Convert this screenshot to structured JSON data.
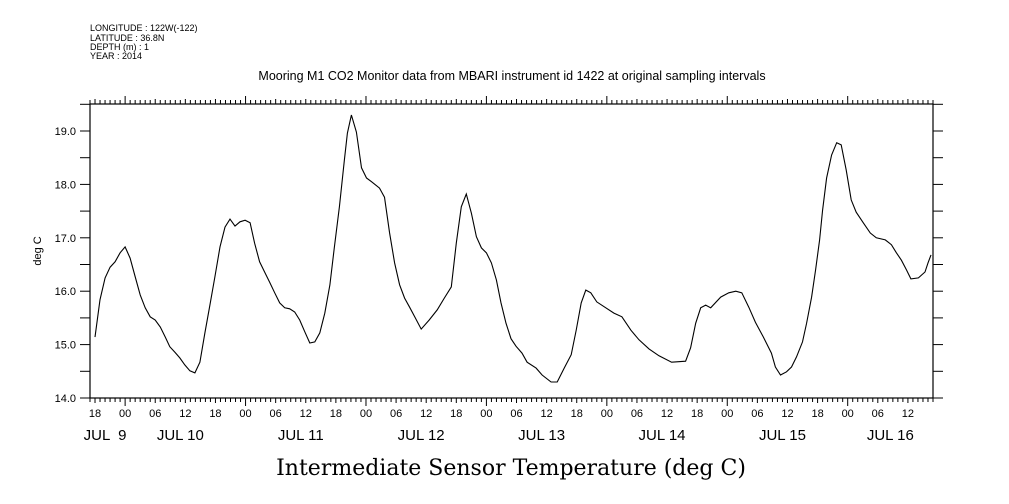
{
  "chart_data": {
    "type": "line",
    "title": "Mooring M1 CO2 Monitor data from MBARI instrument id 1422 at original sampling intervals",
    "header_lines": [
      "LONGITUDE : 122W(-122)",
      "LATITUDE : 36.8N",
      "DEPTH (m) : 1",
      "YEAR : 2014"
    ],
    "xlabel": "Intermediate Sensor Temperature (deg C)",
    "ylabel": "deg C",
    "x_units": "hours since JUL 10 2014 00:00",
    "xlim": [
      -7,
      161
    ],
    "ylim": [
      14.0,
      19.5
    ],
    "grid": false,
    "y_ticks": [
      14.0,
      15.0,
      16.0,
      17.0,
      18.0,
      19.0
    ],
    "y_tick_labels": [
      "14.0",
      "15.0",
      "16.0",
      "17.0",
      "18.0",
      "19.0"
    ],
    "x_ticks": [
      -6,
      0,
      6,
      12,
      18,
      24,
      30,
      36,
      42,
      48,
      54,
      60,
      66,
      72,
      78,
      84,
      90,
      96,
      102,
      108,
      114,
      120,
      126,
      132,
      138,
      144,
      150,
      156
    ],
    "x_tick_labels": [
      "18",
      "00",
      "06",
      "12",
      "18",
      "00",
      "06",
      "12",
      "18",
      "00",
      "06",
      "12",
      "18",
      "00",
      "06",
      "12",
      "18",
      "00",
      "06",
      "12",
      "18",
      "00",
      "06",
      "12",
      "18",
      "00",
      "06",
      "12"
    ],
    "day_labels": [
      {
        "label": "JUL  9",
        "at": -4
      },
      {
        "label": "JUL 10",
        "at": 11
      },
      {
        "label": "JUL 11",
        "at": 35
      },
      {
        "label": "JUL 12",
        "at": 59
      },
      {
        "label": "JUL 13",
        "at": 83
      },
      {
        "label": "JUL 14",
        "at": 107
      },
      {
        "label": "JUL 15",
        "at": 131
      },
      {
        "label": "JUL 16",
        "at": 152.5
      }
    ],
    "series": [
      {
        "name": "Intermediate Sensor Temperature",
        "color": "#000000",
        "x": [
          -6,
          -5,
          -4,
          -3,
          -2,
          -1,
          0,
          1,
          2,
          3,
          4,
          5,
          6,
          7,
          8,
          8.9,
          9.9,
          10.9,
          11.9,
          12.9,
          13.9,
          14.9,
          15.9,
          16.9,
          17.9,
          18.9,
          19.9,
          20.9,
          21.9,
          22.9,
          23.9,
          24.9,
          25.8,
          26.8,
          27.8,
          28.8,
          29.8,
          30.8,
          31.8,
          32.8,
          33.8,
          34.8,
          35.8,
          36.8,
          37.8,
          38.8,
          39.8,
          40.8,
          41.7,
          42.7,
          43.7,
          44.3,
          45.1,
          46.1,
          47.1,
          48.1,
          49.1,
          50.7,
          51.7,
          52.7,
          53.7,
          54.7,
          55.7,
          56.7,
          57.7,
          59.0,
          60.6,
          62.2,
          63.6,
          65.0,
          66.0,
          67.0,
          68.0,
          69.0,
          70.0,
          71.0,
          72.0,
          73.0,
          74.0,
          74.9,
          75.9,
          76.9,
          77.9,
          79.1,
          80.1,
          81.9,
          83.1,
          84.9,
          86.1,
          87.5,
          88.9,
          89.9,
          90.9,
          91.8,
          92.8,
          94.0,
          95.8,
          97.4,
          99.0,
          100.8,
          102.4,
          104.4,
          106.4,
          108.9,
          111.7,
          112.7,
          113.7,
          114.7,
          115.7,
          116.7,
          118.7,
          120.3,
          121.7,
          122.9,
          124.3,
          125.6,
          127.2,
          128.8,
          129.6,
          130.6,
          131.8,
          132.8,
          133.8,
          135.0,
          135.8,
          136.8,
          137.6,
          138.4,
          139.0,
          139.8,
          140.8,
          141.8,
          142.7,
          143.7,
          144.7,
          145.7,
          147.1,
          148.5,
          149.7,
          151.5,
          152.7,
          153.7,
          154.7,
          155.7,
          156.6,
          158.1,
          159.4,
          160.0,
          160.6
        ],
        "y": [
          15.14,
          15.84,
          16.25,
          16.45,
          16.55,
          16.72,
          16.83,
          16.62,
          16.27,
          15.93,
          15.69,
          15.52,
          15.46,
          15.33,
          15.14,
          14.96,
          14.86,
          14.75,
          14.62,
          14.51,
          14.47,
          14.67,
          15.22,
          15.74,
          16.27,
          16.83,
          17.2,
          17.35,
          17.22,
          17.3,
          17.33,
          17.28,
          16.9,
          16.55,
          16.36,
          16.17,
          15.97,
          15.78,
          15.69,
          15.67,
          15.61,
          15.46,
          15.24,
          15.03,
          15.05,
          15.22,
          15.59,
          16.12,
          16.83,
          17.58,
          18.46,
          18.96,
          19.3,
          18.98,
          18.31,
          18.12,
          18.05,
          17.93,
          17.76,
          17.09,
          16.53,
          16.12,
          15.87,
          15.7,
          15.52,
          15.29,
          15.46,
          15.65,
          15.87,
          16.08,
          16.9,
          17.58,
          17.82,
          17.46,
          17.02,
          16.81,
          16.72,
          16.53,
          16.21,
          15.78,
          15.4,
          15.11,
          14.97,
          14.84,
          14.67,
          14.56,
          14.43,
          14.3,
          14.3,
          14.56,
          14.81,
          15.27,
          15.78,
          16.02,
          15.97,
          15.8,
          15.69,
          15.59,
          15.52,
          15.27,
          15.09,
          14.92,
          14.79,
          14.67,
          14.69,
          14.94,
          15.4,
          15.69,
          15.74,
          15.69,
          15.89,
          15.97,
          16.0,
          15.97,
          15.7,
          15.42,
          15.14,
          14.84,
          14.58,
          14.43,
          14.49,
          14.58,
          14.77,
          15.05,
          15.4,
          15.89,
          16.4,
          16.96,
          17.52,
          18.12,
          18.55,
          18.78,
          18.74,
          18.27,
          17.71,
          17.48,
          17.28,
          17.09,
          17.0,
          16.96,
          16.87,
          16.72,
          16.58,
          16.4,
          16.23,
          16.25,
          16.36,
          16.53,
          16.68
        ]
      }
    ]
  }
}
